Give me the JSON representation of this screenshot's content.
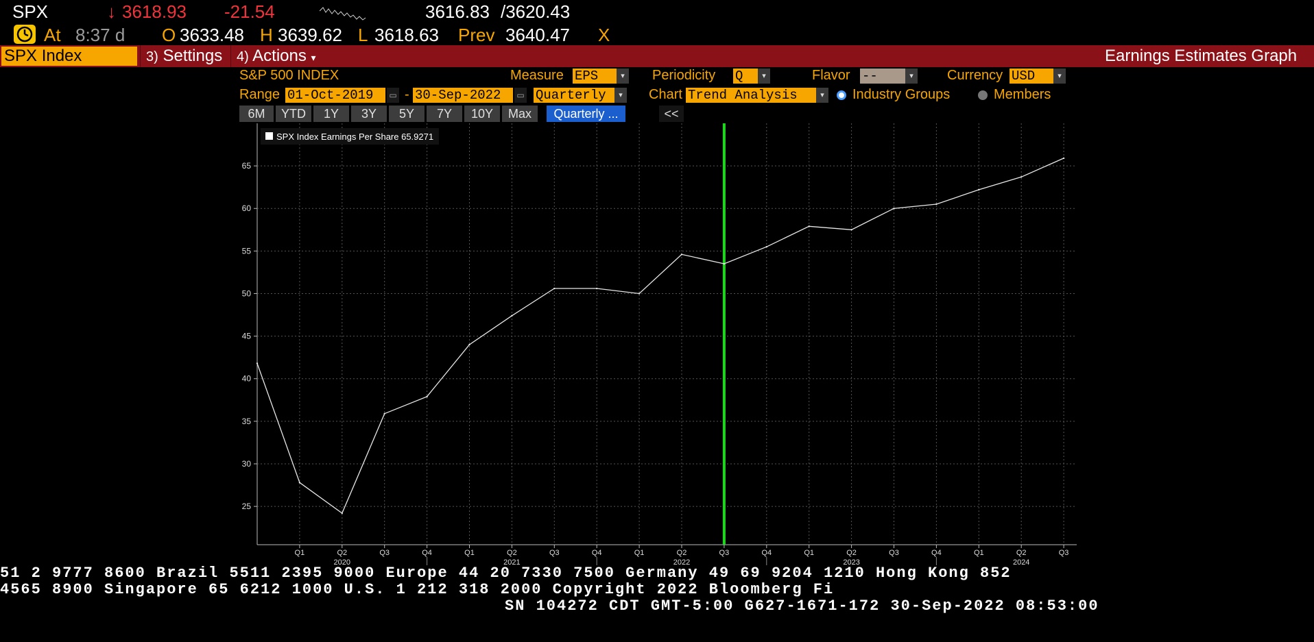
{
  "quote": {
    "symbol": "SPX",
    "arrow": "↓",
    "last": "3618.93",
    "change": "-21.54",
    "bid": "3616.83",
    "ask": "/3620.43",
    "at_label": "At",
    "time": "8:37 d",
    "open_label": "O",
    "open": "3633.48",
    "high_label": "H",
    "high": "3639.62",
    "low_label": "L",
    "low": "3618.63",
    "prev_label": "Prev",
    "prev": "3640.47",
    "exchange": "X"
  },
  "toolbar": {
    "security": "SPX Index",
    "settings_num": "3)",
    "settings_label": "Settings",
    "actions_num": "4)",
    "actions_label": "Actions",
    "actions_caret": "▾",
    "function_title": "Earnings Estimates Graph"
  },
  "controls": {
    "index_name": "S&P 500 INDEX",
    "measure_label": "Measure",
    "measure_value": "EPS",
    "periodicity_label": "Periodicity",
    "periodicity_value": "Q",
    "flavor_label": "Flavor",
    "flavor_value": "--",
    "currency_label": "Currency",
    "currency_value": "USD",
    "range_label": "Range",
    "range_start": "01-Oct-2019",
    "range_dash": "-",
    "range_end": "30-Sep-2022",
    "range_period": "Quarterly",
    "chart_label": "Chart",
    "chart_value": "Trend Analysis",
    "radio_1": "Industry Groups",
    "radio_2": "Members",
    "collapse": "<<"
  },
  "range_buttons": [
    "6M",
    "YTD",
    "1Y",
    "3Y",
    "5Y",
    "7Y",
    "10Y",
    "Max",
    "Quarterly ..."
  ],
  "chart_data": {
    "type": "line",
    "legend": "SPX Index Earnings Per Share 65.9271",
    "x": [
      "Q4 2019",
      "Q1 2020",
      "Q2 2020",
      "Q3 2020",
      "Q4 2020",
      "Q1 2021",
      "Q2 2021",
      "Q3 2021",
      "Q4 2021",
      "Q1 2022",
      "Q2 2022",
      "Q3 2022",
      "Q4 2022",
      "Q1 2023",
      "Q2 2023",
      "Q3 2023",
      "Q4 2023",
      "Q1 2024",
      "Q2 2024",
      "Q3 2024"
    ],
    "series": [
      {
        "name": "SPX Index Earnings Per Share",
        "values": [
          41.8,
          27.8,
          24.2,
          35.9,
          37.9,
          44.0,
          47.4,
          50.6,
          50.6,
          50.0,
          54.6,
          53.5,
          55.5,
          57.9,
          57.5,
          60.0,
          60.5,
          62.2,
          63.7,
          65.9
        ]
      }
    ],
    "y_ticks": [
      25,
      30,
      35,
      40,
      45,
      50,
      55,
      60,
      65
    ],
    "ylim": [
      20.5,
      70
    ],
    "tick_labels": [
      "Q1",
      "Q2",
      "Q3",
      "Q4",
      "Q1",
      "Q2",
      "Q3",
      "Q4",
      "Q1",
      "Q2",
      "Q3",
      "Q4",
      "Q1",
      "Q2",
      "Q3",
      "Q4",
      "Q1",
      "Q2",
      "Q3"
    ],
    "year_labels": [
      "2020",
      "2021",
      "2022",
      "2023",
      "2024"
    ],
    "current_marker": "Q3 2022",
    "line_color": "#e8e8e8",
    "marker_color": "#1ed81e",
    "grid": true
  },
  "footer": {
    "line1": "51 2 9777 8600 Brazil 5511 2395 9000 Europe 44 20 7330 7500 Germany 49 69 9204 1210 Hong Kong 852",
    "line2": " 4565 8900       Singapore 65 6212 1000       U.S. 1 212 318 2000        Copyright 2022 Bloomberg Fi",
    "line3": "SN 104272 CDT  GMT-5:00 G627-1671-172 30-Sep-2022 08:53:00"
  }
}
